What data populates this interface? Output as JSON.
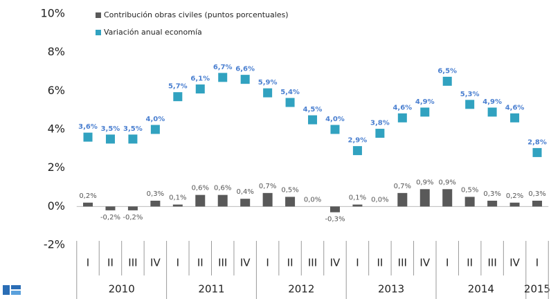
{
  "chart_data": {
    "type": "combo",
    "categories": [
      "I",
      "II",
      "III",
      "IV",
      "I",
      "II",
      "III",
      "IV",
      "I",
      "II",
      "III",
      "IV",
      "I",
      "II",
      "III",
      "IV",
      "I",
      "II",
      "III",
      "IV",
      "I"
    ],
    "year_groups": [
      {
        "label": "2010",
        "count": 4
      },
      {
        "label": "2011",
        "count": 4
      },
      {
        "label": "2012",
        "count": 4
      },
      {
        "label": "2013",
        "count": 4
      },
      {
        "label": "2014",
        "count": 4
      },
      {
        "label": "2015",
        "count": 1
      }
    ],
    "series": [
      {
        "name": "Contribución obras civiles (puntos porcentuales)",
        "type": "bar",
        "color": "#595959",
        "values": [
          0.2,
          -0.2,
          -0.2,
          0.3,
          0.1,
          0.6,
          0.6,
          0.4,
          0.7,
          0.5,
          0.0,
          -0.3,
          0.1,
          0.0,
          0.7,
          0.9,
          0.9,
          0.5,
          0.3,
          0.2,
          0.3
        ],
        "value_labels": [
          "0,2%",
          "-0,2%",
          "-0,2%",
          "0,3%",
          "0,1%",
          "0,6%",
          "0,6%",
          "0,4%",
          "0,7%",
          "0,5%",
          "0,0%",
          "-0,3%",
          "0,1%",
          "0,0%",
          "0,7%",
          "0,9%",
          "0,9%",
          "0,5%",
          "0,3%",
          "0,2%",
          "0,3%"
        ]
      },
      {
        "name": "Variación anual economía",
        "type": "scatter",
        "color": "#31a2c0",
        "values": [
          3.6,
          3.5,
          3.5,
          4.0,
          5.7,
          6.1,
          6.7,
          6.6,
          5.9,
          5.4,
          4.5,
          4.0,
          2.9,
          3.8,
          4.6,
          4.9,
          6.5,
          5.3,
          4.9,
          4.6,
          2.8
        ],
        "value_labels": [
          "3,6%",
          "3,5%",
          "3,5%",
          "4,0%",
          "5,7%",
          "6,1%",
          "6,7%",
          "6,6%",
          "5,9%",
          "5,4%",
          "4,5%",
          "4,0%",
          "2,9%",
          "3,8%",
          "4,6%",
          "4,9%",
          "6,5%",
          "5,3%",
          "4,9%",
          "4,6%",
          "2,8%"
        ]
      }
    ],
    "ylim": [
      -2,
      10
    ],
    "yticks": [
      {
        "value": -2,
        "label": "-2%"
      },
      {
        "value": 0,
        "label": "0%"
      },
      {
        "value": 2,
        "label": "2%"
      },
      {
        "value": 4,
        "label": "4%"
      },
      {
        "value": 6,
        "label": "6%"
      },
      {
        "value": 8,
        "label": "8%"
      },
      {
        "value": 10,
        "label": "10%"
      }
    ],
    "grid": false
  }
}
